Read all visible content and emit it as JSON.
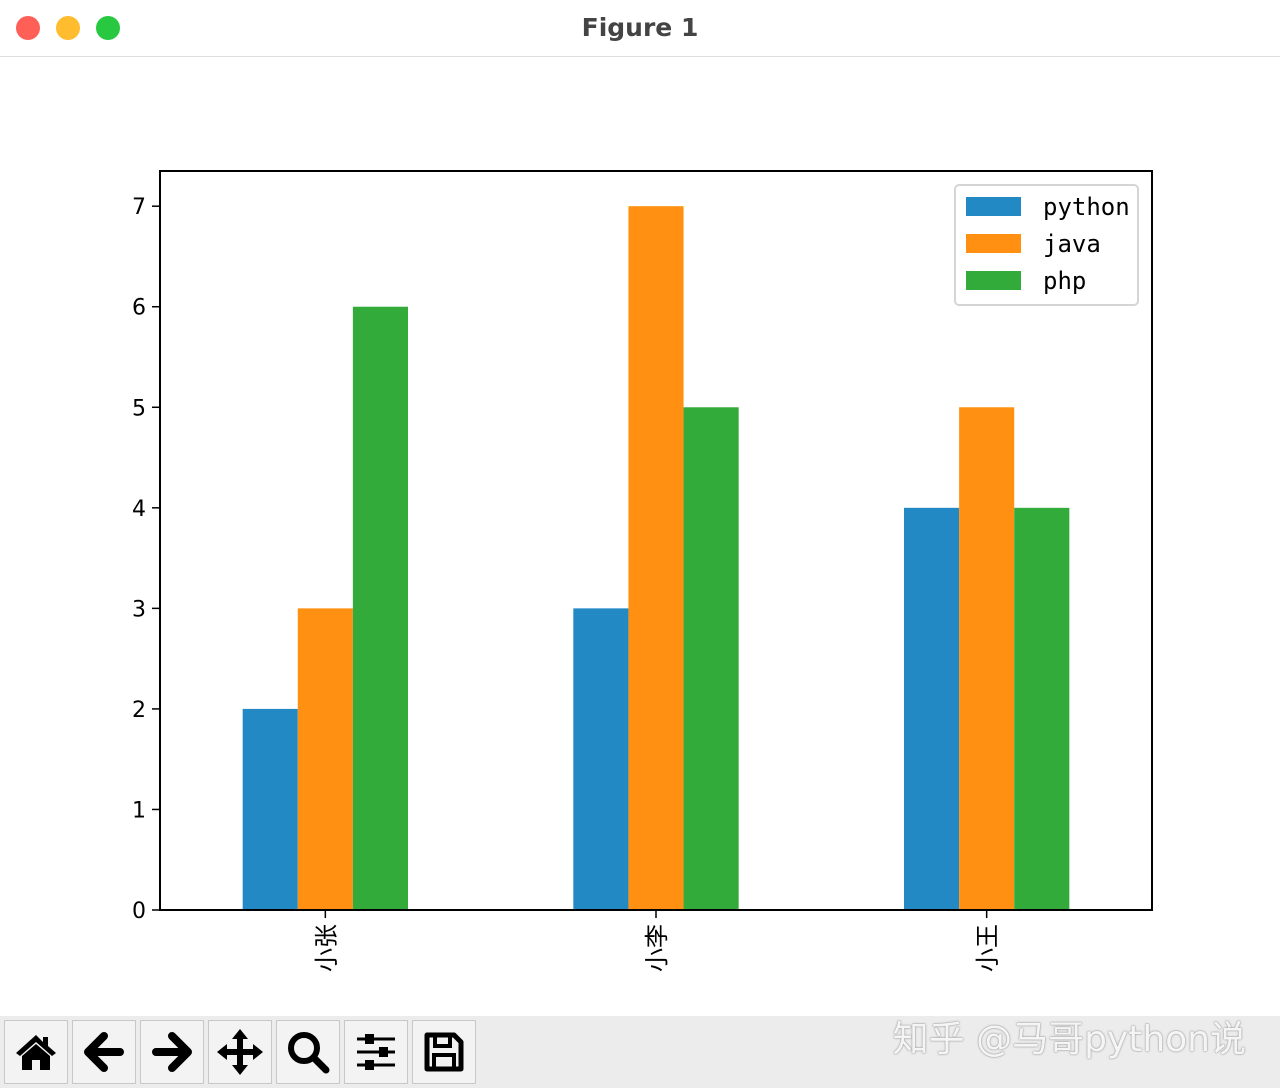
{
  "window": {
    "title": "Figure 1"
  },
  "colors": {
    "python": "#2389c4",
    "java": "#ff9011",
    "php": "#33ab3b",
    "close": "#fe5f57",
    "minimize": "#febc2e",
    "zoom": "#28c840"
  },
  "toolbar": {
    "buttons": [
      "home-icon",
      "back-arrow-icon",
      "forward-arrow-icon",
      "pan-move-icon",
      "zoom-magnifier-icon",
      "subplots-sliders-icon",
      "save-floppy-icon"
    ]
  },
  "watermark": "知乎 @马哥python说",
  "chart_data": {
    "type": "bar",
    "categories": [
      "小张",
      "小李",
      "小王"
    ],
    "series": [
      {
        "name": "python",
        "values": [
          2,
          3,
          4
        ]
      },
      {
        "name": "java",
        "values": [
          3,
          7,
          5
        ]
      },
      {
        "name": "php",
        "values": [
          6,
          5,
          4
        ]
      }
    ],
    "yticks": [
      0,
      1,
      2,
      3,
      4,
      5,
      6,
      7
    ],
    "ylim": [
      0,
      7.35
    ],
    "xtick_rotation": 90,
    "grid": false,
    "legend": "top-right"
  }
}
